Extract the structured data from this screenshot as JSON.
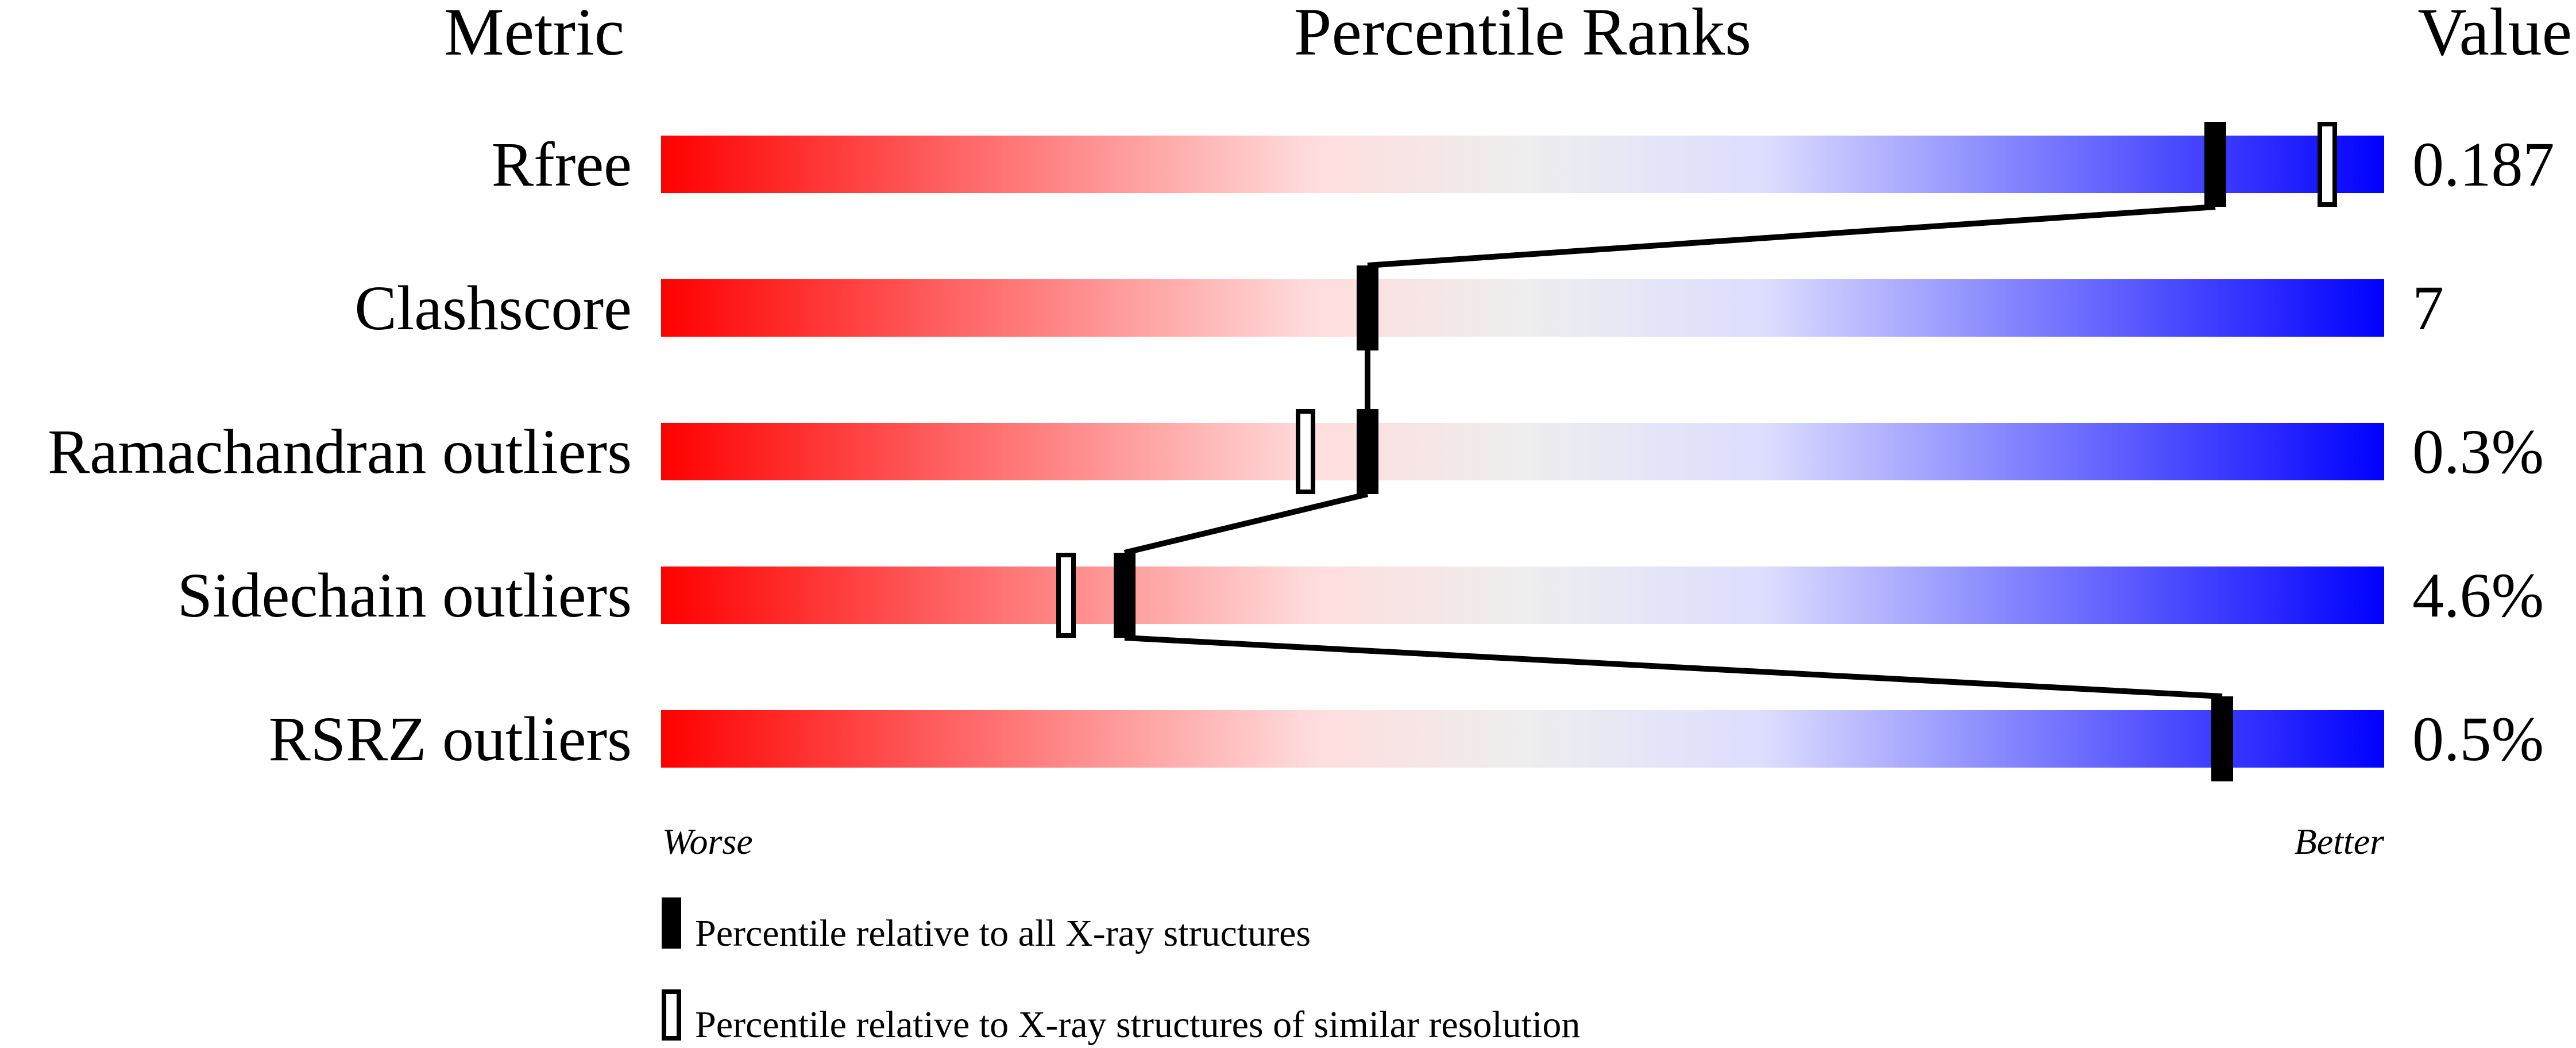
{
  "chart_data": {
    "type": "percentile-slider",
    "headers": {
      "metric": "Metric",
      "title": "Percentile Ranks",
      "value": "Value"
    },
    "xlim": [
      0,
      100
    ],
    "axis_labels": {
      "left": "Worse",
      "right": "Better"
    },
    "gradient_colors": [
      "#ff0000",
      "#ffdddd",
      "#eeeeee",
      "#ddddff",
      "#0000ff"
    ],
    "metrics": [
      {
        "name": "Rfree",
        "value": "0.187",
        "percentile_all": 90.2,
        "percentile_similar": 96.7
      },
      {
        "name": "Clashscore",
        "value": "7",
        "percentile_all": 41.0,
        "percentile_similar": null
      },
      {
        "name": "Ramachandran outliers",
        "value": "0.3%",
        "percentile_all": 41.0,
        "percentile_similar": 37.4
      },
      {
        "name": "Sidechain outliers",
        "value": "4.6%",
        "percentile_all": 26.9,
        "percentile_similar": 23.5
      },
      {
        "name": "RSRZ outliers",
        "value": "0.5%",
        "percentile_all": 90.6,
        "percentile_similar": null
      }
    ],
    "legend": [
      {
        "marker": "filled",
        "label": "Percentile relative to all X-ray structures"
      },
      {
        "marker": "open",
        "label": "Percentile relative to X-ray structures of similar resolution"
      }
    ]
  }
}
